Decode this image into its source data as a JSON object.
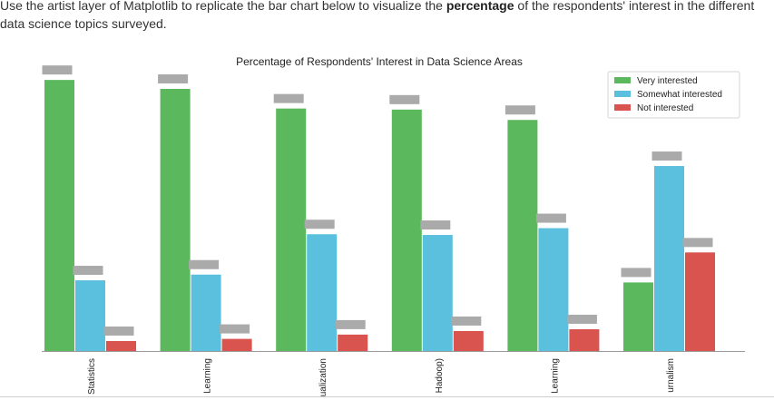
{
  "intro": {
    "before": "Use the artist layer of Matplotlib to replicate the bar chart below to visualize the ",
    "bold": "percentage",
    "after": " of the respondents' interest in the different data science topics surveyed."
  },
  "chart_data": {
    "type": "bar",
    "title": "Percentage of Respondents' Interest in Data Science Areas",
    "xlabel": "",
    "ylabel": "",
    "ylim": [
      0,
      80
    ],
    "grid": false,
    "legend_position": "top-right",
    "categories": [
      "Statistics",
      "Learning",
      "ualization",
      "Hadoop)",
      "Learning",
      "urnalism"
    ],
    "series": [
      {
        "name": "Very interested",
        "color": "#5cb85c",
        "values": [
          75.9,
          73.4,
          67.9,
          67.6,
          64.7,
          19.2
        ]
      },
      {
        "name": "Somewhat interested",
        "color": "#5bc0de",
        "values": [
          19.8,
          21.4,
          32.7,
          32.5,
          34.4,
          51.8
        ]
      },
      {
        "name": "Not interested",
        "color": "#d9534f",
        "values": [
          2.8,
          3.4,
          4.6,
          5.6,
          6.1,
          27.6
        ]
      }
    ]
  }
}
